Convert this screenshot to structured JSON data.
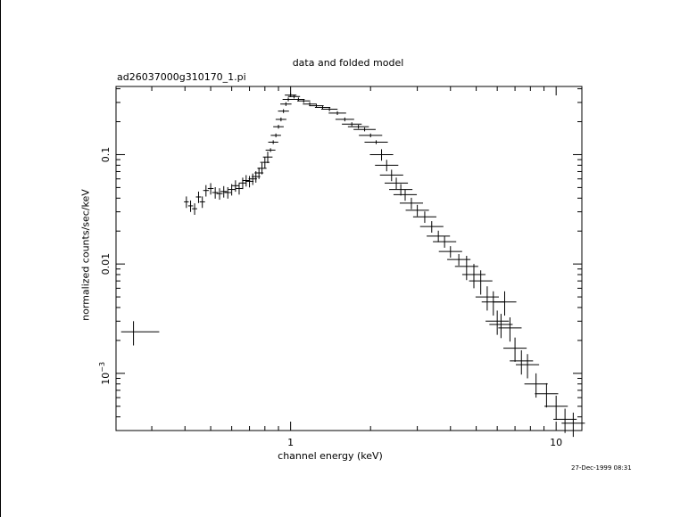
{
  "chart_data": {
    "type": "scatter",
    "title": "data and folded model",
    "subtitle": "ad26037000g310170_1.pi",
    "xlabel": "channel energy (keV)",
    "ylabel": "normalized counts/sec/keV",
    "xscale": "log",
    "yscale": "log",
    "xlim": [
      0.22,
      12.5
    ],
    "ylim": [
      0.0003,
      0.42
    ],
    "x_ticks": [
      {
        "value": 1,
        "label": "1"
      },
      {
        "value": 10,
        "label": "10"
      }
    ],
    "y_ticks": [
      {
        "value": 0.1,
        "label": "0.1"
      },
      {
        "value": 0.01,
        "label": "0.01"
      },
      {
        "value": 0.001,
        "label": "10",
        "exponent": "−3"
      }
    ],
    "series": [
      {
        "points": [
          {
            "x": 0.256,
            "y": 0.0024,
            "xerr": [
              0.23,
              0.32
            ]
          },
          {
            "x": 0.405,
            "y": 0.037
          },
          {
            "x": 0.42,
            "y": 0.034
          },
          {
            "x": 0.435,
            "y": 0.032
          },
          {
            "x": 0.45,
            "y": 0.041
          },
          {
            "x": 0.465,
            "y": 0.037
          },
          {
            "x": 0.48,
            "y": 0.047
          },
          {
            "x": 0.5,
            "y": 0.049
          },
          {
            "x": 0.52,
            "y": 0.045
          },
          {
            "x": 0.54,
            "y": 0.044
          },
          {
            "x": 0.56,
            "y": 0.046
          },
          {
            "x": 0.58,
            "y": 0.045
          },
          {
            "x": 0.6,
            "y": 0.048
          },
          {
            "x": 0.62,
            "y": 0.052
          },
          {
            "x": 0.64,
            "y": 0.049
          },
          {
            "x": 0.66,
            "y": 0.055
          },
          {
            "x": 0.68,
            "y": 0.058
          },
          {
            "x": 0.7,
            "y": 0.057
          },
          {
            "x": 0.72,
            "y": 0.06
          },
          {
            "x": 0.74,
            "y": 0.063
          },
          {
            "x": 0.76,
            "y": 0.068
          },
          {
            "x": 0.78,
            "y": 0.075
          },
          {
            "x": 0.8,
            "y": 0.085
          },
          {
            "x": 0.82,
            "y": 0.095
          },
          {
            "x": 0.84,
            "y": 0.11
          },
          {
            "x": 0.86,
            "y": 0.13
          },
          {
            "x": 0.88,
            "y": 0.15
          },
          {
            "x": 0.9,
            "y": 0.18
          },
          {
            "x": 0.92,
            "y": 0.21
          },
          {
            "x": 0.94,
            "y": 0.25
          },
          {
            "x": 0.96,
            "y": 0.29
          },
          {
            "x": 0.98,
            "y": 0.32
          },
          {
            "x": 1.0,
            "y": 0.35
          },
          {
            "x": 1.03,
            "y": 0.34
          },
          {
            "x": 1.07,
            "y": 0.32
          },
          {
            "x": 1.12,
            "y": 0.31
          },
          {
            "x": 1.18,
            "y": 0.29
          },
          {
            "x": 1.25,
            "y": 0.28
          },
          {
            "x": 1.32,
            "y": 0.27
          },
          {
            "x": 1.4,
            "y": 0.26
          },
          {
            "x": 1.5,
            "y": 0.24
          },
          {
            "x": 1.6,
            "y": 0.21
          },
          {
            "x": 1.7,
            "y": 0.19
          },
          {
            "x": 1.8,
            "y": 0.18
          },
          {
            "x": 1.9,
            "y": 0.17
          },
          {
            "x": 2.0,
            "y": 0.15
          },
          {
            "x": 2.1,
            "y": 0.13
          },
          {
            "x": 2.2,
            "y": 0.1
          },
          {
            "x": 2.3,
            "y": 0.08
          },
          {
            "x": 2.4,
            "y": 0.065
          },
          {
            "x": 2.5,
            "y": 0.055
          },
          {
            "x": 2.6,
            "y": 0.048
          },
          {
            "x": 2.7,
            "y": 0.043
          },
          {
            "x": 2.85,
            "y": 0.036
          },
          {
            "x": 3.0,
            "y": 0.031
          },
          {
            "x": 3.2,
            "y": 0.027
          },
          {
            "x": 3.4,
            "y": 0.022
          },
          {
            "x": 3.6,
            "y": 0.018
          },
          {
            "x": 3.8,
            "y": 0.016
          },
          {
            "x": 4.0,
            "y": 0.013
          },
          {
            "x": 4.3,
            "y": 0.011
          },
          {
            "x": 4.6,
            "y": 0.0095
          },
          {
            "x": 4.9,
            "y": 0.008
          },
          {
            "x": 5.2,
            "y": 0.007
          },
          {
            "x": 5.5,
            "y": 0.005
          },
          {
            "x": 5.8,
            "y": 0.0045
          },
          {
            "x": 6.0,
            "y": 0.003
          },
          {
            "x": 6.2,
            "y": 0.0028
          },
          {
            "x": 6.4,
            "y": 0.0045
          },
          {
            "x": 6.7,
            "y": 0.0026
          },
          {
            "x": 7.0,
            "y": 0.0017
          },
          {
            "x": 7.4,
            "y": 0.0013
          },
          {
            "x": 7.8,
            "y": 0.0012
          },
          {
            "x": 8.4,
            "y": 0.0008
          },
          {
            "x": 9.2,
            "y": 0.00065
          },
          {
            "x": 10.0,
            "y": 0.0005
          },
          {
            "x": 10.8,
            "y": 0.00038
          },
          {
            "x": 11.6,
            "y": 0.00035
          }
        ]
      }
    ],
    "grid": false
  },
  "page": {
    "timestamp": "27-Dec-1999 08:31"
  }
}
